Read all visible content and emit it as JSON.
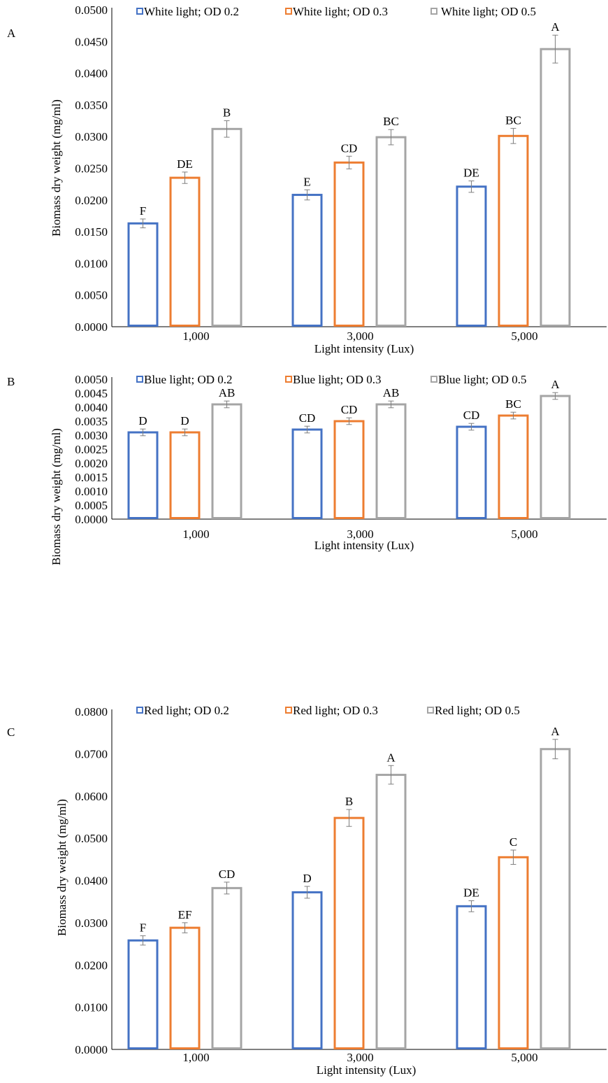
{
  "figure": {
    "colors": [
      "#4472C4",
      "#ED7D31",
      "#A5A5A5"
    ],
    "panels": [
      {
        "panel_label": "A",
        "legend": [
          "White light; OD 0.2",
          "White light; OD 0.3",
          "White light; OD 0.5"
        ],
        "xlabel": "Light intensity (Lux)",
        "ylabel": "Biomass dry weight (mg/ml)"
      },
      {
        "panel_label": "B",
        "legend": [
          "Blue light; OD 0.2",
          "Blue light; OD 0.3",
          "Blue light; OD 0.5"
        ],
        "xlabel": "Light intensity (Lux)",
        "ylabel": "Biomass dry weight (mg/ml)"
      },
      {
        "panel_label": "C",
        "legend": [
          "Red light; OD 0.2",
          "Red light; OD 0.3",
          "Red light; OD 0.5"
        ],
        "xlabel": "Light intensity (Lux)",
        "ylabel": "Biomass dry weight (mg/ml)"
      }
    ]
  },
  "chart_data": [
    {
      "type": "bar",
      "panel": "A",
      "categories": [
        "1,000",
        "3,000",
        "5,000"
      ],
      "xlabel": "Light intensity (Lux)",
      "ylabel": "Biomass dry weight (mg/ml)",
      "ylim": [
        0,
        0.05
      ],
      "yticks": [
        "0.0000",
        "0.0050",
        "0.0100",
        "0.0150",
        "0.0200",
        "0.0250",
        "0.0300",
        "0.0350",
        "0.0400",
        "0.0450",
        "0.0500"
      ],
      "legend_position": "top",
      "grid": false,
      "series": [
        {
          "name": "White light; OD 0.2",
          "values": [
            0.0163,
            0.0208,
            0.0221
          ],
          "errors": [
            0.0007,
            0.0008,
            0.0009
          ],
          "labels": [
            "F",
            "E",
            "DE"
          ]
        },
        {
          "name": "White light; OD 0.3",
          "values": [
            0.0235,
            0.0259,
            0.0301
          ],
          "errors": [
            0.0009,
            0.001,
            0.0012
          ],
          "labels": [
            "DE",
            "CD",
            "BC"
          ]
        },
        {
          "name": "White light; OD 0.5",
          "values": [
            0.0312,
            0.0299,
            0.0438
          ],
          "errors": [
            0.0013,
            0.0012,
            0.0022
          ],
          "labels": [
            "B",
            "BC",
            "A"
          ]
        }
      ]
    },
    {
      "type": "bar",
      "panel": "B",
      "categories": [
        "1,000",
        "3,000",
        "5,000"
      ],
      "xlabel": "Light intensity (Lux)",
      "ylabel": "Biomass dry weight (mg/ml)",
      "ylim": [
        0,
        0.005
      ],
      "yticks": [
        "0.0000",
        "0.0005",
        "0.0010",
        "0.0015",
        "0.0020",
        "0.0025",
        "0.0030",
        "0.0035",
        "0.0040",
        "0.0045",
        "0.0050"
      ],
      "legend_position": "top",
      "grid": false,
      "series": [
        {
          "name": "Blue light; OD 0.2",
          "values": [
            0.0031,
            0.0032,
            0.0033
          ],
          "errors": [
            0.00012,
            0.00012,
            0.00012
          ],
          "labels": [
            "D",
            "CD",
            "CD"
          ]
        },
        {
          "name": "Blue light; OD 0.3",
          "values": [
            0.0031,
            0.0035,
            0.0037
          ],
          "errors": [
            0.00012,
            0.00012,
            0.00012
          ],
          "labels": [
            "D",
            "CD",
            "BC"
          ]
        },
        {
          "name": "Blue light; OD 0.5",
          "values": [
            0.0041,
            0.0041,
            0.0044
          ],
          "errors": [
            0.00012,
            0.00012,
            0.00012
          ],
          "labels": [
            "AB",
            "AB",
            "A"
          ]
        }
      ]
    },
    {
      "type": "bar",
      "panel": "C",
      "categories": [
        "1,000",
        "3,000",
        "5,000"
      ],
      "xlabel": "Light intensity (Lux)",
      "ylabel": "Biomass dry weight (mg/ml)",
      "ylim": [
        0,
        0.08
      ],
      "yticks": [
        "0.0000",
        "0.0100",
        "0.0200",
        "0.0300",
        "0.0400",
        "0.0500",
        "0.0600",
        "0.0700",
        "0.0800"
      ],
      "legend_position": "top",
      "grid": false,
      "series": [
        {
          "name": "Red light; OD 0.2",
          "values": [
            0.0258,
            0.0372,
            0.0339
          ],
          "errors": [
            0.0011,
            0.0014,
            0.0013
          ],
          "labels": [
            "F",
            "D",
            "DE"
          ]
        },
        {
          "name": "Red light; OD 0.3",
          "values": [
            0.0288,
            0.0548,
            0.0455
          ],
          "errors": [
            0.0012,
            0.002,
            0.0017
          ],
          "labels": [
            "EF",
            "B",
            "C"
          ]
        },
        {
          "name": "Red light; OD 0.5",
          "values": [
            0.0382,
            0.065,
            0.0711
          ],
          "errors": [
            0.0014,
            0.0022,
            0.0023
          ],
          "labels": [
            "CD",
            "A",
            "A"
          ]
        }
      ]
    }
  ]
}
